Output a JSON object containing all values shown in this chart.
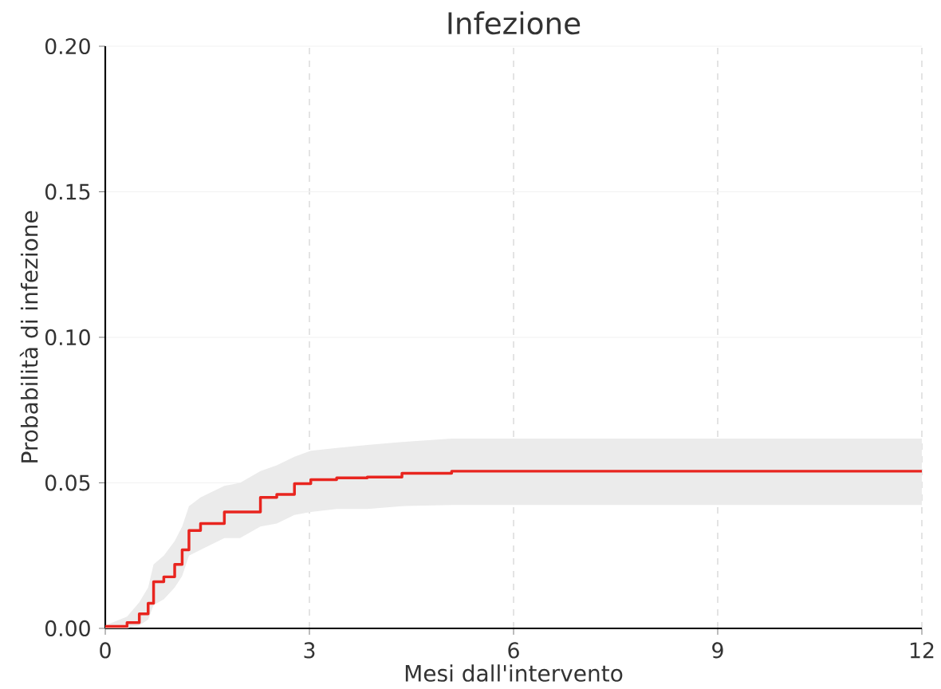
{
  "chart_data": {
    "type": "step",
    "title": "Infezione",
    "xlabel": "Mesi dall'intervento",
    "ylabel": "Probabilità di infezione",
    "x": [
      0,
      0.32,
      0.5,
      0.63,
      0.71,
      0.86,
      1.02,
      1.13,
      1.23,
      1.4,
      1.75,
      1.98,
      2.28,
      2.52,
      2.78,
      3.02,
      3.4,
      3.85,
      4.36,
      5.09,
      12
    ],
    "series": [
      {
        "color": "#e8251f",
        "values": [
          0.0007,
          0.002,
          0.005,
          0.0086,
          0.016,
          0.0177,
          0.022,
          0.027,
          0.0336,
          0.036,
          0.04,
          0.04,
          0.045,
          0.046,
          0.0497,
          0.0511,
          0.0517,
          0.052,
          0.0533,
          0.054,
          0.054
        ],
        "lower": [
          0,
          0,
          0.001,
          0.003,
          0.008,
          0.01,
          0.014,
          0.018,
          0.025,
          0.027,
          0.031,
          0.031,
          0.035,
          0.036,
          0.039,
          0.04,
          0.041,
          0.041,
          0.042,
          0.0424,
          0.0424
        ],
        "upper": [
          0.001,
          0.004,
          0.009,
          0.014,
          0.022,
          0.025,
          0.03,
          0.035,
          0.042,
          0.045,
          0.049,
          0.05,
          0.054,
          0.056,
          0.059,
          0.061,
          0.062,
          0.063,
          0.064,
          0.0652,
          0.0652
        ]
      }
    ],
    "xlim": [
      0,
      12
    ],
    "ylim": [
      0,
      0.2
    ],
    "xticks": [
      0,
      3,
      6,
      9,
      12
    ],
    "yticks": [
      {
        "value": 0,
        "label": "0.00"
      },
      {
        "value": 0.05,
        "label": "0.05"
      },
      {
        "value": 0.1,
        "label": "0.10"
      },
      {
        "value": 0.15,
        "label": "0.15"
      },
      {
        "value": 0.2,
        "label": "0.20"
      }
    ],
    "grid": true
  }
}
